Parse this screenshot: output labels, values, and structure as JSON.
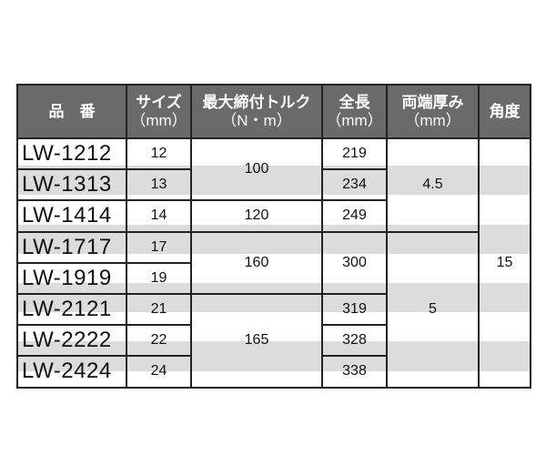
{
  "header": {
    "model": "品　番",
    "size": [
      "サイズ",
      "（mm）"
    ],
    "torque": [
      "最大締付トルク",
      "（N・m）"
    ],
    "length": [
      "全長",
      "（mm）"
    ],
    "thickness": [
      "両端厚み",
      "（mm）"
    ],
    "angle": "角度"
  },
  "rows": [
    {
      "model": "LW-1212",
      "size": "12",
      "length": "219"
    },
    {
      "model": "LW-1313",
      "size": "13",
      "length": "234"
    },
    {
      "model": "LW-1414",
      "size": "14",
      "length": "249"
    },
    {
      "model": "LW-1717",
      "size": "17",
      "length": "300"
    },
    {
      "model": "LW-1919",
      "size": "19"
    },
    {
      "model": "LW-2121",
      "size": "21",
      "length": "319"
    },
    {
      "model": "LW-2222",
      "size": "22",
      "length": "328"
    },
    {
      "model": "LW-2424",
      "size": "24",
      "length": "338"
    }
  ],
  "torque": [
    "100",
    "120",
    "160",
    "165"
  ],
  "thickness": [
    "4.5",
    "5"
  ],
  "angle": "15",
  "colors": {
    "header_bg": "#6a6a6a",
    "stripe": "#dcdcdc"
  }
}
